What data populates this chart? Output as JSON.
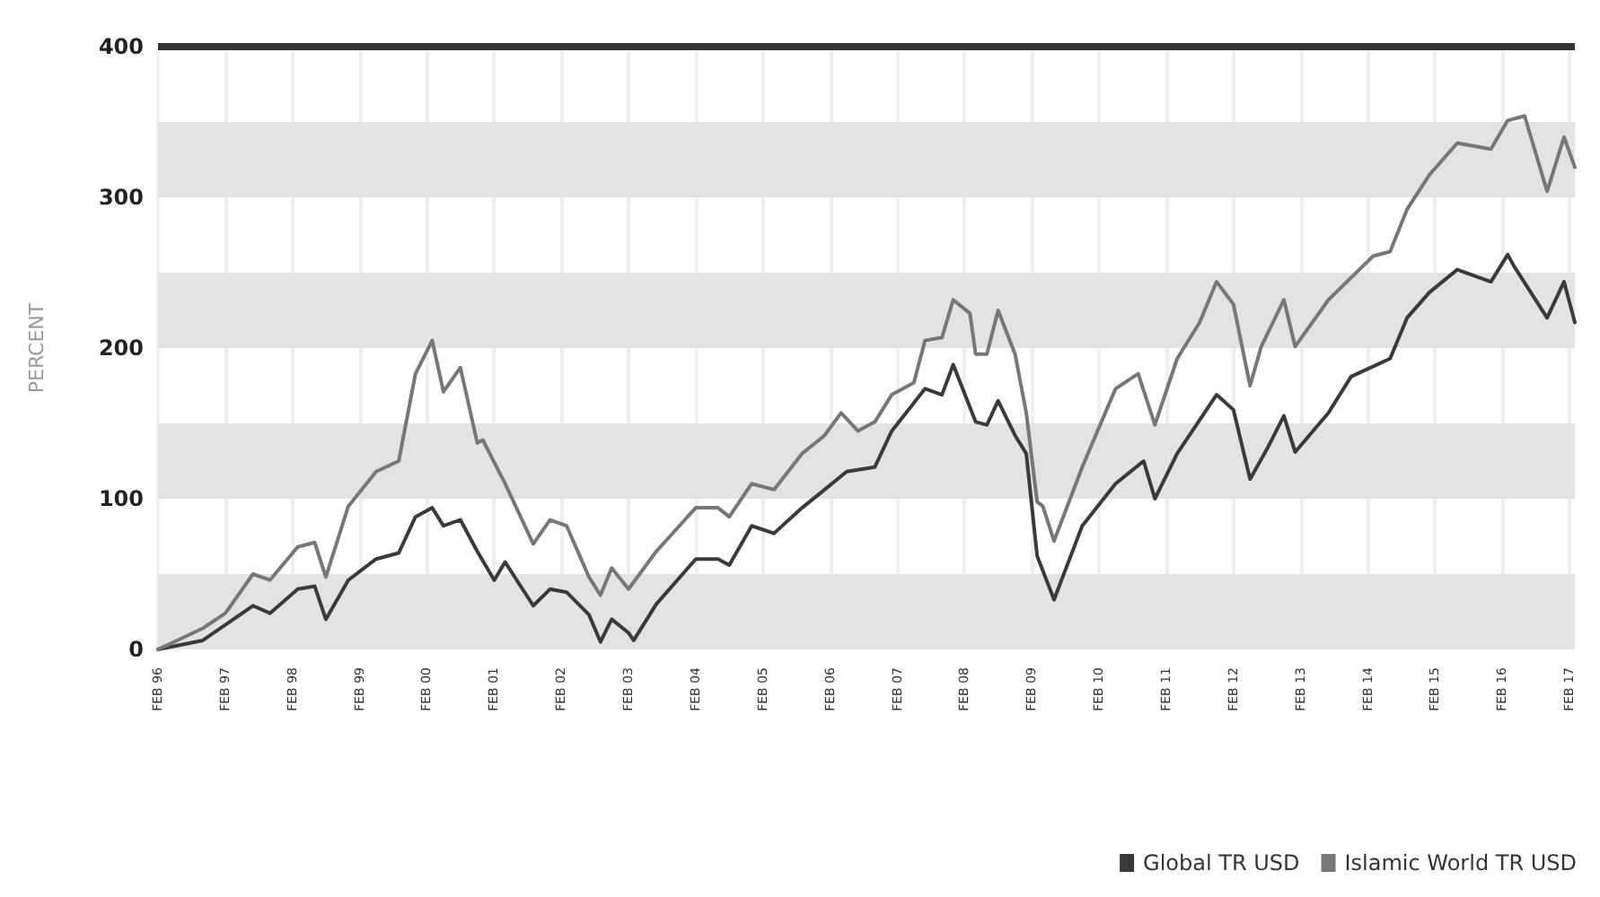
{
  "chart_data": {
    "type": "line",
    "ylabel": "PERCENT",
    "ylim": [
      0,
      400
    ],
    "yticks": [
      0,
      100,
      200,
      300,
      400
    ],
    "xlim": [
      "1996-02",
      "2017-03"
    ],
    "xticks": [
      {
        "value": "1996-02",
        "label": "FEB 96"
      },
      {
        "value": "1997-02",
        "label": "FEB 97"
      },
      {
        "value": "1998-02",
        "label": "FEB 98"
      },
      {
        "value": "1999-02",
        "label": "FEB 99"
      },
      {
        "value": "2000-02",
        "label": "FEB 00"
      },
      {
        "value": "2001-02",
        "label": "FEB 01"
      },
      {
        "value": "2002-02",
        "label": "FEB 02"
      },
      {
        "value": "2003-02",
        "label": "FEB 03"
      },
      {
        "value": "2004-02",
        "label": "FEB 04"
      },
      {
        "value": "2005-02",
        "label": "FEB 05"
      },
      {
        "value": "2006-02",
        "label": "FEB 06"
      },
      {
        "value": "2007-02",
        "label": "FEB 07"
      },
      {
        "value": "2008-02",
        "label": "FEB 08"
      },
      {
        "value": "2009-02",
        "label": "FEB 09"
      },
      {
        "value": "2010-02",
        "label": "FEB 10"
      },
      {
        "value": "2011-02",
        "label": "FEB 11"
      },
      {
        "value": "2012-02",
        "label": "FEB 12"
      },
      {
        "value": "2013-02",
        "label": "FEB 13"
      },
      {
        "value": "2014-02",
        "label": "FEB 14"
      },
      {
        "value": "2015-02",
        "label": "FEB 15"
      },
      {
        "value": "2016-02",
        "label": "FEB 16"
      },
      {
        "value": "2017-02",
        "label": "FEB 17"
      }
    ],
    "grid": "x",
    "legend": "bottom right",
    "marker": "none",
    "line_style": "solid",
    "bands": [
      {
        "axis": "y",
        "from": 0,
        "to": 50,
        "color": "#e3e3e3"
      },
      {
        "axis": "y",
        "from": 100,
        "to": 150,
        "color": "#e3e3e3"
      },
      {
        "axis": "y",
        "from": 200,
        "to": 250,
        "color": "#e3e3e3"
      },
      {
        "axis": "y",
        "from": 300,
        "to": 350,
        "color": "#e3e3e3"
      }
    ],
    "ref_lines": [
      {
        "axis": "y",
        "value": 400,
        "color": "#333333"
      }
    ],
    "series": [
      {
        "name": "Global TR USD",
        "color": "#3a3a3a",
        "x": [
          "1996-02",
          "1996-10",
          "1997-07",
          "1997-10",
          "1998-03",
          "1998-06",
          "1998-08",
          "1998-12",
          "1999-05",
          "1999-09",
          "1999-12",
          "2000-03",
          "2000-05",
          "2000-08",
          "2000-11",
          "2001-02",
          "2001-04",
          "2001-09",
          "2001-12",
          "2002-03",
          "2002-07",
          "2002-09",
          "2002-11",
          "2003-02",
          "2003-03",
          "2003-07",
          "2004-02",
          "2004-06",
          "2004-08",
          "2004-12",
          "2005-04",
          "2005-09",
          "2006-01",
          "2006-05",
          "2006-10",
          "2007-01",
          "2007-07",
          "2007-10",
          "2007-12",
          "2008-04",
          "2008-06",
          "2008-08",
          "2008-11",
          "2009-01",
          "2009-03",
          "2009-06",
          "2009-11",
          "2010-05",
          "2010-10",
          "2010-12",
          "2011-04",
          "2011-11",
          "2012-02",
          "2012-05",
          "2012-08",
          "2012-11",
          "2013-01",
          "2013-07",
          "2013-11",
          "2014-06",
          "2014-09",
          "2015-01",
          "2015-06",
          "2015-12",
          "2016-03",
          "2016-04",
          "2016-10",
          "2017-01",
          "2017-03"
        ],
        "values": [
          0,
          6,
          29,
          24,
          40,
          42,
          20,
          46,
          60,
          64,
          88,
          94,
          82,
          86,
          65,
          46,
          58,
          29,
          40,
          38,
          23,
          5,
          20,
          11,
          6,
          30,
          60,
          60,
          56,
          82,
          77,
          94,
          106,
          118,
          121,
          145,
          173,
          169,
          189,
          151,
          149,
          165,
          142,
          130,
          62,
          33,
          82,
          110,
          125,
          100,
          130,
          169,
          159,
          113,
          133,
          155,
          131,
          157,
          181,
          193,
          220,
          237,
          252,
          244,
          262,
          255,
          220,
          244,
          217
        ]
      },
      {
        "name": "Islamic World TR USD",
        "color": "#777777",
        "x": [
          "1996-02",
          "1996-10",
          "1997-02",
          "1997-07",
          "1997-10",
          "1998-03",
          "1998-06",
          "1998-08",
          "1998-12",
          "1999-05",
          "1999-09",
          "1999-12",
          "2000-03",
          "2000-05",
          "2000-08",
          "2000-11",
          "2000-12",
          "2001-04",
          "2001-09",
          "2001-12",
          "2002-03",
          "2002-07",
          "2002-09",
          "2002-11",
          "2003-02",
          "2003-07",
          "2004-02",
          "2004-06",
          "2004-08",
          "2004-12",
          "2005-04",
          "2005-09",
          "2006-01",
          "2006-04",
          "2006-07",
          "2006-10",
          "2007-01",
          "2007-05",
          "2007-07",
          "2007-10",
          "2007-12",
          "2008-03",
          "2008-04",
          "2008-06",
          "2008-08",
          "2008-11",
          "2009-01",
          "2009-03",
          "2009-04",
          "2009-06",
          "2009-11",
          "2010-05",
          "2010-09",
          "2010-12",
          "2011-04",
          "2011-08",
          "2011-11",
          "2012-02",
          "2012-05",
          "2012-07",
          "2012-11",
          "2013-01",
          "2013-07",
          "2014-03",
          "2014-06",
          "2014-09",
          "2015-01",
          "2015-06",
          "2015-12",
          "2016-03",
          "2016-06",
          "2016-10",
          "2017-01",
          "2017-03"
        ],
        "values": [
          0,
          14,
          24,
          50,
          46,
          68,
          71,
          48,
          95,
          118,
          125,
          183,
          205,
          171,
          187,
          137,
          139,
          110,
          70,
          86,
          82,
          48,
          36,
          54,
          40,
          65,
          94,
          94,
          88,
          110,
          106,
          130,
          142,
          157,
          145,
          151,
          169,
          177,
          205,
          207,
          232,
          223,
          196,
          196,
          225,
          196,
          157,
          98,
          95,
          72,
          121,
          173,
          183,
          149,
          193,
          217,
          244,
          229,
          175,
          201,
          232,
          201,
          232,
          261,
          264,
          292,
          315,
          336,
          332,
          351,
          354,
          304,
          340,
          320
        ]
      }
    ]
  }
}
